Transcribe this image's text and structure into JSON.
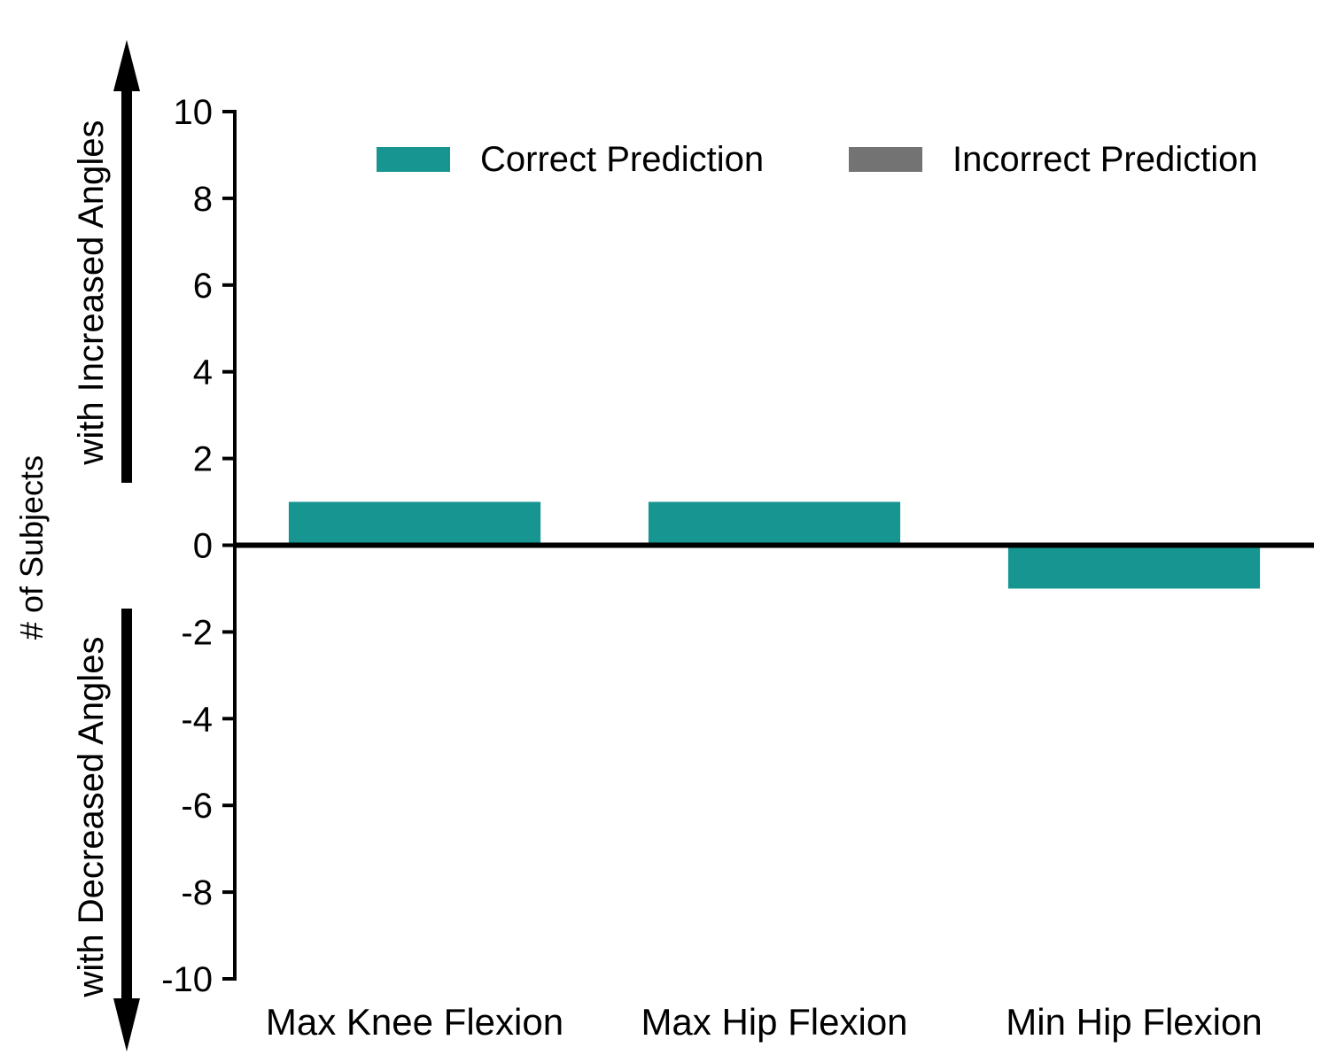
{
  "chart_data": {
    "type": "bar",
    "categories": [
      "Max Knee Flexion",
      "Max Hip Flexion",
      "Min Hip Flexion"
    ],
    "series": [
      {
        "name": "Correct Prediction",
        "color": "#169591",
        "values": [
          1,
          1,
          -1
        ]
      },
      {
        "name": "Incorrect Prediction",
        "color": "#737373",
        "values": [
          0,
          0,
          0
        ]
      }
    ],
    "ylabel": "# of Subjects",
    "ylabel_up": "with Increased Angles",
    "ylabel_down": "with Decreased Angles",
    "ylim": [
      -10,
      10
    ],
    "yticks": [
      10,
      8,
      6,
      4,
      2,
      0,
      -2,
      -4,
      -6,
      -8,
      -10
    ],
    "legend_position": "top-right",
    "grid": false
  }
}
